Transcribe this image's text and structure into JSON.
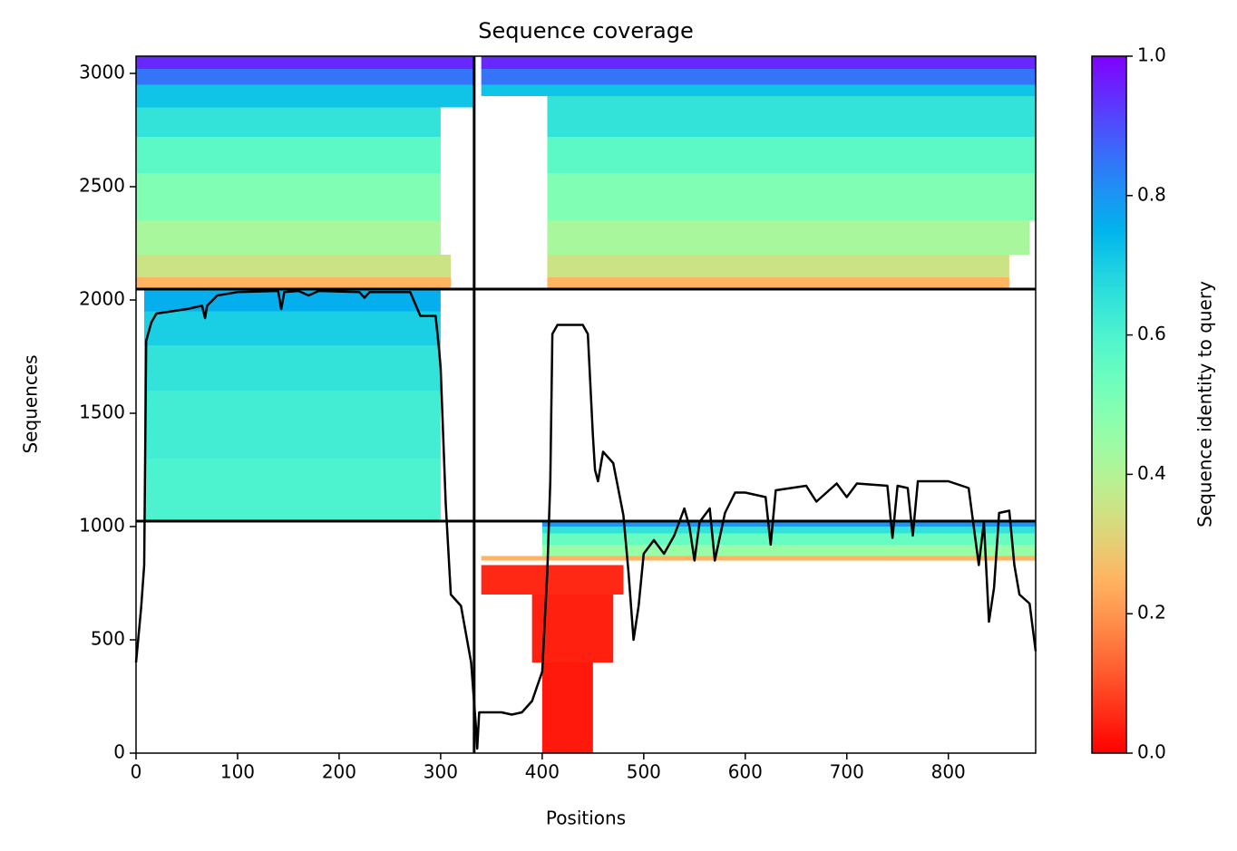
{
  "chart_data": {
    "type": "heatmap",
    "title": "Sequence coverage",
    "xlabel": "Positions",
    "ylabel": "Sequences",
    "xlim": [
      0,
      886
    ],
    "ylim": [
      0,
      3076
    ],
    "xticks": [
      0,
      100,
      200,
      300,
      400,
      500,
      600,
      700,
      800
    ],
    "yticks": [
      0,
      500,
      1000,
      1500,
      2000,
      2500,
      3000
    ],
    "colormap": "rainbow_r",
    "colorbar": {
      "label": "Sequence identity to query",
      "lim": [
        0,
        1
      ],
      "ticks": [
        {
          "value": 0,
          "label": "0.0"
        },
        0.2,
        0.4,
        0.6,
        0.8,
        {
          "value": 1,
          "label": "1.0"
        }
      ]
    },
    "bands": [
      {
        "x": [
          0,
          310
        ],
        "y": [
          2048,
          2100
        ],
        "identity": 0.25
      },
      {
        "x": [
          0,
          310
        ],
        "y": [
          2100,
          2200
        ],
        "identity": 0.35
      },
      {
        "x": [
          0,
          300
        ],
        "y": [
          2200,
          2350
        ],
        "identity": 0.42
      },
      {
        "x": [
          0,
          300
        ],
        "y": [
          2350,
          2560
        ],
        "identity": 0.5
      },
      {
        "x": [
          0,
          300
        ],
        "y": [
          2560,
          2720
        ],
        "identity": 0.57
      },
      {
        "x": [
          0,
          300
        ],
        "y": [
          2720,
          2850
        ],
        "identity": 0.65
      },
      {
        "x": [
          0,
          333
        ],
        "y": [
          2850,
          2950
        ],
        "identity": 0.72
      },
      {
        "x": [
          0,
          333
        ],
        "y": [
          2950,
          3020
        ],
        "identity": 0.85
      },
      {
        "x": [
          0,
          333
        ],
        "y": [
          3020,
          3076
        ],
        "identity": 0.95
      },
      {
        "x": [
          405,
          860
        ],
        "y": [
          2048,
          2100
        ],
        "identity": 0.25
      },
      {
        "x": [
          405,
          860
        ],
        "y": [
          2100,
          2200
        ],
        "identity": 0.35
      },
      {
        "x": [
          405,
          880
        ],
        "y": [
          2200,
          2350
        ],
        "identity": 0.42
      },
      {
        "x": [
          405,
          886
        ],
        "y": [
          2350,
          2560
        ],
        "identity": 0.5
      },
      {
        "x": [
          405,
          886
        ],
        "y": [
          2560,
          2720
        ],
        "identity": 0.57
      },
      {
        "x": [
          405,
          886
        ],
        "y": [
          2720,
          2900
        ],
        "identity": 0.65
      },
      {
        "x": [
          340,
          886
        ],
        "y": [
          2900,
          2950
        ],
        "identity": 0.72
      },
      {
        "x": [
          340,
          886
        ],
        "y": [
          2950,
          3020
        ],
        "identity": 0.85
      },
      {
        "x": [
          340,
          886
        ],
        "y": [
          3020,
          3076
        ],
        "identity": 0.95
      },
      {
        "x": [
          8,
          300
        ],
        "y": [
          1024,
          1300
        ],
        "identity": 0.6
      },
      {
        "x": [
          8,
          300
        ],
        "y": [
          1300,
          1600
        ],
        "identity": 0.62
      },
      {
        "x": [
          8,
          300
        ],
        "y": [
          1600,
          1800
        ],
        "identity": 0.65
      },
      {
        "x": [
          8,
          300
        ],
        "y": [
          1800,
          1950
        ],
        "identity": 0.7
      },
      {
        "x": [
          8,
          300
        ],
        "y": [
          1950,
          2048
        ],
        "identity": 0.76
      },
      {
        "x": [
          340,
          886
        ],
        "y": [
          850,
          870
        ],
        "identity": 0.25
      },
      {
        "x": [
          400,
          886
        ],
        "y": [
          870,
          920
        ],
        "identity": 0.45
      },
      {
        "x": [
          400,
          886
        ],
        "y": [
          920,
          970
        ],
        "identity": 0.55
      },
      {
        "x": [
          400,
          886
        ],
        "y": [
          970,
          1000
        ],
        "identity": 0.65
      },
      {
        "x": [
          400,
          886
        ],
        "y": [
          1000,
          1024
        ],
        "identity": 0.8
      },
      {
        "x": [
          340,
          480
        ],
        "y": [
          700,
          830
        ],
        "identity": 0.05
      },
      {
        "x": [
          390,
          470
        ],
        "y": [
          400,
          700
        ],
        "identity": 0.04
      },
      {
        "x": [
          400,
          450
        ],
        "y": [
          0,
          400
        ],
        "identity": 0.03
      }
    ],
    "boundaries": {
      "x": [
        333
      ],
      "y": [
        1024,
        2048
      ]
    },
    "coverage": {
      "color": "#000000",
      "x": [
        0,
        5,
        8,
        10,
        15,
        20,
        50,
        65,
        68,
        70,
        80,
        100,
        140,
        143,
        146,
        160,
        170,
        180,
        220,
        225,
        230,
        270,
        280,
        295,
        298,
        300,
        305,
        310,
        320,
        330,
        335,
        336,
        338,
        360,
        370,
        380,
        390,
        400,
        405,
        408,
        410,
        415,
        440,
        445,
        450,
        452,
        455,
        460,
        470,
        480,
        485,
        490,
        495,
        500,
        510,
        520,
        530,
        540,
        545,
        550,
        555,
        565,
        570,
        580,
        590,
        600,
        620,
        625,
        630,
        660,
        670,
        690,
        700,
        710,
        740,
        745,
        750,
        760,
        765,
        770,
        800,
        820,
        830,
        835,
        840,
        845,
        850,
        860,
        865,
        870,
        880,
        886
      ],
      "y": [
        400,
        640,
        830,
        1820,
        1900,
        1940,
        1960,
        1975,
        1920,
        1975,
        2020,
        2035,
        2040,
        1960,
        2035,
        2040,
        2020,
        2040,
        2035,
        2010,
        2035,
        2035,
        1930,
        1930,
        1800,
        1700,
        1100,
        700,
        650,
        400,
        100,
        20,
        180,
        180,
        170,
        180,
        230,
        360,
        800,
        1200,
        1850,
        1890,
        1890,
        1850,
        1400,
        1250,
        1200,
        1330,
        1280,
        1050,
        800,
        500,
        650,
        880,
        940,
        880,
        960,
        1080,
        1000,
        850,
        1020,
        1080,
        850,
        1060,
        1150,
        1150,
        1130,
        920,
        1160,
        1180,
        1110,
        1190,
        1130,
        1190,
        1180,
        950,
        1180,
        1170,
        960,
        1200,
        1200,
        1170,
        830,
        1020,
        580,
        730,
        1060,
        1070,
        830,
        700,
        660,
        450
      ]
    }
  }
}
